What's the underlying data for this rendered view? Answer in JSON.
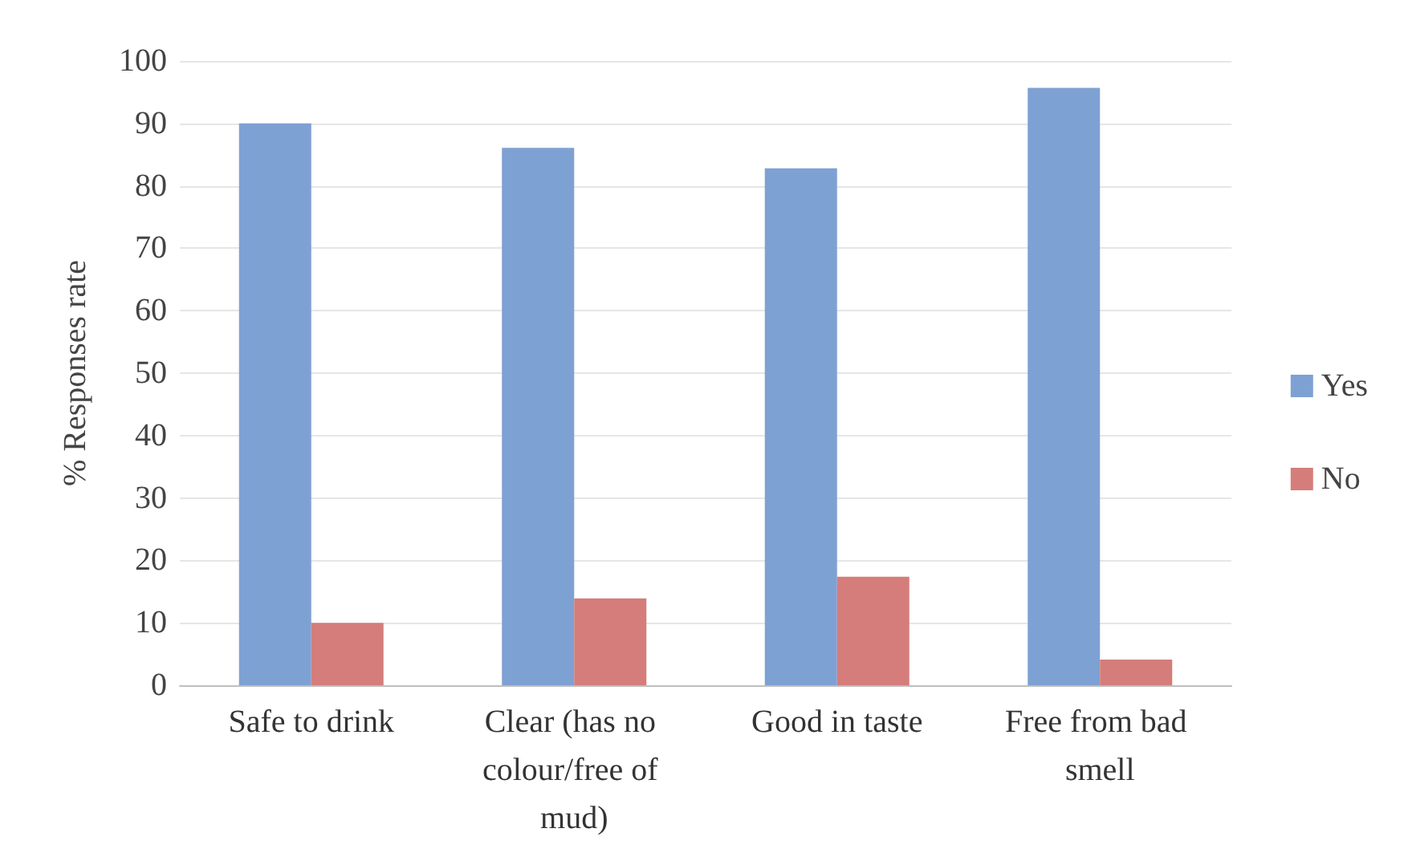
{
  "chart_data": {
    "type": "bar",
    "ylabel": "% Responses rate",
    "categories": [
      "Safe to drink",
      "Clear (has no colour/free of mud)",
      "Good in taste",
      "Free from bad smell"
    ],
    "series": [
      {
        "name": "Yes",
        "color": "#7ea1d3",
        "values": [
          90,
          86.1,
          82.8,
          95.7
        ]
      },
      {
        "name": "No",
        "color": "#d47d7a",
        "values": [
          10,
          13.9,
          17.4,
          4.1
        ]
      }
    ],
    "ylim": [
      0,
      100
    ],
    "yticks": [
      0,
      10,
      20,
      30,
      40,
      50,
      60,
      70,
      80,
      90,
      100
    ],
    "grid": "y",
    "legend": "right"
  }
}
